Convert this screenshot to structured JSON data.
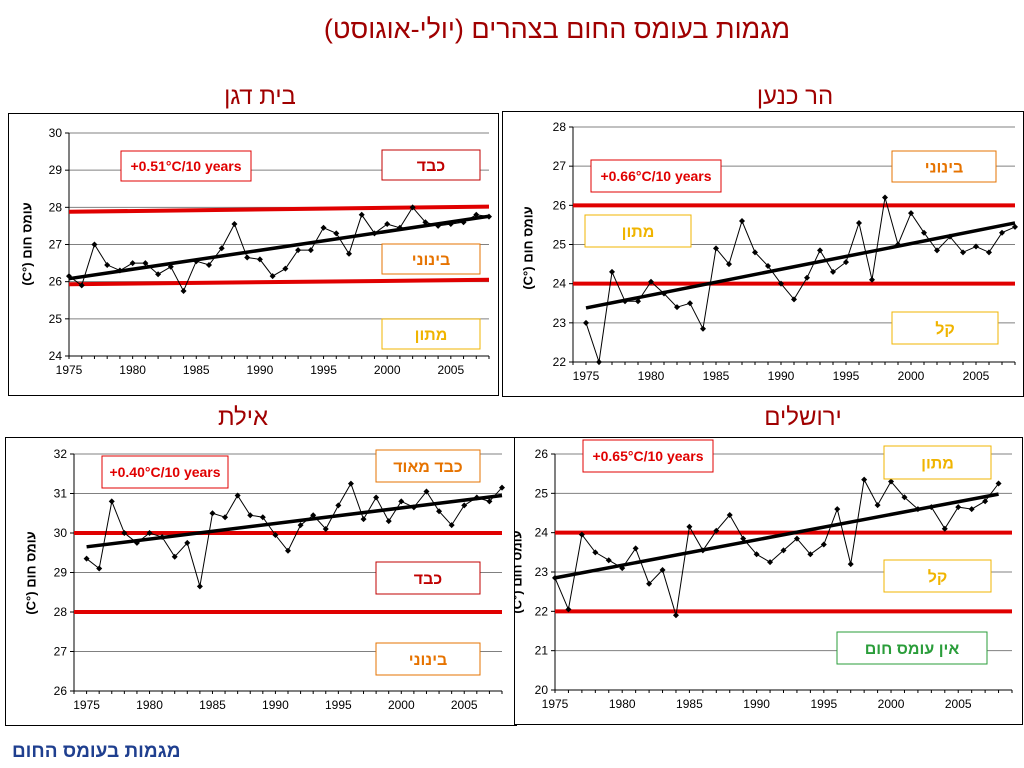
{
  "page": {
    "title": "מגמות בעומס החום בצהרים (יולי-אוגוסט)",
    "footer": "מגמות בעומס החום"
  },
  "colors": {
    "title": "#a00000",
    "threshold_line": "#e00000",
    "trend_label": "#e00000",
    "heavy_label": "#c00000",
    "moderate_label": "#e67300",
    "light_label": "#f0b400",
    "none_label": "#2a9d3a",
    "footer": "#1f3f8f"
  },
  "chart_data": [
    {
      "id": "beit-dagan",
      "station": "בית דגן",
      "type": "line",
      "ylabel": "עומס חום (°C)",
      "ylim": [
        24,
        30
      ],
      "yticks": [
        24,
        25,
        26,
        27,
        28,
        29,
        30
      ],
      "xlim": [
        1975,
        2008
      ],
      "xticks": [
        1975,
        1980,
        1985,
        1990,
        1995,
        2000,
        2005
      ],
      "grid": true,
      "trend_text": "+0.51°C/10 years",
      "trend_line": {
        "x": [
          1975,
          2008
        ],
        "y": [
          26.08,
          27.76
        ]
      },
      "thresholds": [
        {
          "x": [
            1975,
            2008
          ],
          "y": [
            27.88,
            28.02
          ]
        },
        {
          "x": [
            1975,
            2008
          ],
          "y": [
            25.93,
            26.05
          ]
        }
      ],
      "categories": [
        {
          "text": "כבד",
          "kind": "heavy"
        },
        {
          "text": "בינוני",
          "kind": "moderate"
        },
        {
          "text": "מתון",
          "kind": "light"
        }
      ],
      "x": [
        1975,
        1976,
        1977,
        1978,
        1979,
        1980,
        1981,
        1982,
        1983,
        1984,
        1985,
        1986,
        1987,
        1988,
        1989,
        1990,
        1991,
        1992,
        1993,
        1994,
        1995,
        1996,
        1997,
        1998,
        1999,
        2000,
        2001,
        2002,
        2003,
        2004,
        2005,
        2006,
        2007,
        2008
      ],
      "values": [
        26.15,
        25.9,
        27.0,
        26.45,
        26.3,
        26.5,
        26.5,
        26.2,
        26.4,
        25.75,
        26.55,
        26.45,
        26.9,
        27.55,
        26.65,
        26.6,
        26.15,
        26.35,
        26.85,
        26.85,
        27.45,
        27.3,
        26.75,
        27.8,
        27.3,
        27.55,
        27.45,
        28.0,
        27.6,
        27.5,
        27.55,
        27.6,
        27.8,
        27.75
      ]
    },
    {
      "id": "har-canaan",
      "station": "הר כנען",
      "type": "line",
      "ylabel": "עומס חום (°C)",
      "ylim": [
        22,
        28
      ],
      "yticks": [
        22,
        23,
        24,
        25,
        26,
        27,
        28
      ],
      "xlim": [
        1974,
        2008
      ],
      "xticks": [
        1975,
        1980,
        1985,
        1990,
        1995,
        2000,
        2005
      ],
      "grid": true,
      "trend_text": "+0.66°C/10 years",
      "trend_line": {
        "x": [
          1975,
          2008
        ],
        "y": [
          23.38,
          25.55
        ]
      },
      "thresholds": [
        {
          "x": [
            1974,
            2008
          ],
          "y": [
            26.0,
            26.0
          ]
        },
        {
          "x": [
            1974,
            2008
          ],
          "y": [
            24.0,
            24.0
          ]
        }
      ],
      "categories": [
        {
          "text": "בינוני",
          "kind": "moderate"
        },
        {
          "text": "מתון",
          "kind": "light"
        },
        {
          "text": "קל",
          "kind": "light"
        }
      ],
      "x": [
        1975,
        1976,
        1977,
        1978,
        1979,
        1980,
        1981,
        1982,
        1983,
        1984,
        1985,
        1986,
        1987,
        1988,
        1989,
        1990,
        1991,
        1992,
        1993,
        1994,
        1995,
        1996,
        1997,
        1998,
        1999,
        2000,
        2001,
        2002,
        2003,
        2004,
        2005,
        2006,
        2007,
        2008
      ],
      "values": [
        23.0,
        22.0,
        24.3,
        23.55,
        23.55,
        24.05,
        23.75,
        23.4,
        23.5,
        22.85,
        24.9,
        24.5,
        25.6,
        24.8,
        24.45,
        24.0,
        23.6,
        24.15,
        24.85,
        24.3,
        24.55,
        25.55,
        24.1,
        26.2,
        25.0,
        25.8,
        25.3,
        24.85,
        25.2,
        24.8,
        24.95,
        24.8,
        25.3,
        25.45
      ]
    },
    {
      "id": "eilat",
      "station": "אילת",
      "type": "line",
      "ylabel": "עומס חום (°C)",
      "ylim": [
        26,
        32
      ],
      "yticks": [
        26,
        27,
        28,
        29,
        30,
        31,
        32
      ],
      "xlim": [
        1974,
        2008
      ],
      "xticks": [
        1975,
        1980,
        1985,
        1990,
        1995,
        2000,
        2005
      ],
      "grid": true,
      "trend_text": "+0.40°C/10 years",
      "trend_line": {
        "x": [
          1975,
          2008
        ],
        "y": [
          29.65,
          30.95
        ]
      },
      "thresholds": [
        {
          "x": [
            1974,
            2008
          ],
          "y": [
            30.0,
            30.0
          ]
        },
        {
          "x": [
            1974,
            2008
          ],
          "y": [
            28.0,
            28.0
          ]
        }
      ],
      "categories": [
        {
          "text": "כבד מאוד",
          "kind": "moderate"
        },
        {
          "text": "כבד",
          "kind": "heavy"
        },
        {
          "text": "בינוני",
          "kind": "moderate"
        }
      ],
      "x": [
        1975,
        1976,
        1977,
        1978,
        1979,
        1980,
        1981,
        1982,
        1983,
        1984,
        1985,
        1986,
        1987,
        1988,
        1989,
        1990,
        1991,
        1992,
        1993,
        1994,
        1995,
        1996,
        1997,
        1998,
        1999,
        2000,
        2001,
        2002,
        2003,
        2004,
        2005,
        2006,
        2007,
        2008
      ],
      "values": [
        29.35,
        29.1,
        30.8,
        30.0,
        29.75,
        30.0,
        29.9,
        29.4,
        29.75,
        28.65,
        30.5,
        30.4,
        30.95,
        30.45,
        30.4,
        29.95,
        29.55,
        30.2,
        30.45,
        30.1,
        30.7,
        31.25,
        30.35,
        30.9,
        30.3,
        30.8,
        30.65,
        31.05,
        30.55,
        30.2,
        30.7,
        30.9,
        30.8,
        31.15
      ]
    },
    {
      "id": "jerusalem",
      "station": "ירושלים",
      "type": "line",
      "ylabel": "עומס חום (°C)",
      "ylim": [
        20,
        26
      ],
      "yticks": [
        20,
        21,
        22,
        23,
        24,
        25,
        26
      ],
      "xlim": [
        1975,
        2009
      ],
      "xticks": [
        1975,
        1980,
        1985,
        1990,
        1995,
        2000,
        2005
      ],
      "grid": true,
      "trend_text": "+0.65°C/10 years",
      "trend_line": {
        "x": [
          1975,
          2008
        ],
        "y": [
          22.85,
          24.98
        ]
      },
      "thresholds": [
        {
          "x": [
            1975,
            2009
          ],
          "y": [
            24.0,
            24.0
          ]
        },
        {
          "x": [
            1975,
            2009
          ],
          "y": [
            22.0,
            22.0
          ]
        }
      ],
      "categories": [
        {
          "text": "מתון",
          "kind": "light"
        },
        {
          "text": "קל",
          "kind": "light"
        },
        {
          "text": "אין עומס חום",
          "kind": "none"
        }
      ],
      "x": [
        1975,
        1976,
        1977,
        1978,
        1979,
        1980,
        1981,
        1982,
        1983,
        1984,
        1985,
        1986,
        1987,
        1988,
        1989,
        1990,
        1991,
        1992,
        1993,
        1994,
        1995,
        1996,
        1997,
        1998,
        1999,
        2000,
        2001,
        2002,
        2003,
        2004,
        2005,
        2006,
        2007,
        2008
      ],
      "values": [
        22.85,
        22.05,
        23.95,
        23.5,
        23.3,
        23.1,
        23.6,
        22.7,
        23.05,
        21.9,
        24.15,
        23.55,
        24.05,
        24.45,
        23.85,
        23.45,
        23.25,
        23.55,
        23.85,
        23.45,
        23.7,
        24.6,
        23.2,
        25.35,
        24.7,
        25.3,
        24.9,
        24.6,
        24.65,
        24.1,
        24.65,
        24.6,
        24.8,
        25.25
      ]
    }
  ]
}
